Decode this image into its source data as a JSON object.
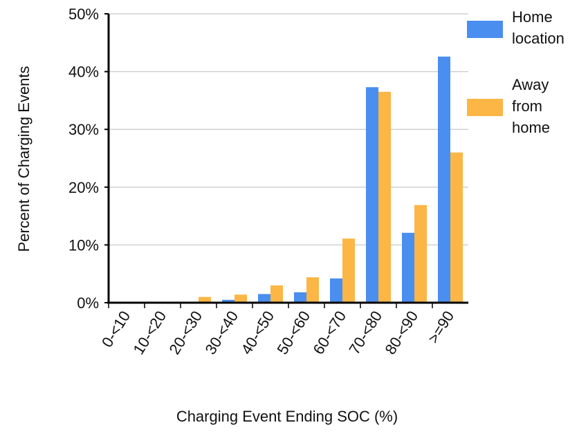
{
  "chart_data": {
    "type": "bar",
    "x_label": "Charging Event Ending SOC (%)",
    "y_label": "Percent of Charging Events",
    "categories": [
      "0-<10",
      "10-<20",
      "20-<30",
      "30-<40",
      "40-<50",
      "50-<60",
      "60-<70",
      "70-<80",
      "80-<90",
      ">=90"
    ],
    "series": [
      {
        "name": "Home location",
        "color": "#4a8ef0",
        "values": [
          0,
          0,
          0,
          0.5,
          1.5,
          1.8,
          4.2,
          37.3,
          12.1,
          42.6
        ]
      },
      {
        "name": "Away from home",
        "color": "#fbb645",
        "values": [
          0,
          0,
          1.0,
          1.4,
          3.0,
          4.4,
          11.1,
          36.5,
          16.9,
          26.0
        ]
      }
    ],
    "ylim": [
      0,
      50
    ],
    "yticks": [
      {
        "value": 0,
        "label": "0%"
      },
      {
        "value": 10,
        "label": "10%"
      },
      {
        "value": 20,
        "label": "20%"
      },
      {
        "value": 30,
        "label": "30%"
      },
      {
        "value": 40,
        "label": "40%"
      },
      {
        "value": 50,
        "label": "50%"
      }
    ],
    "grid": true,
    "legend": "right"
  }
}
